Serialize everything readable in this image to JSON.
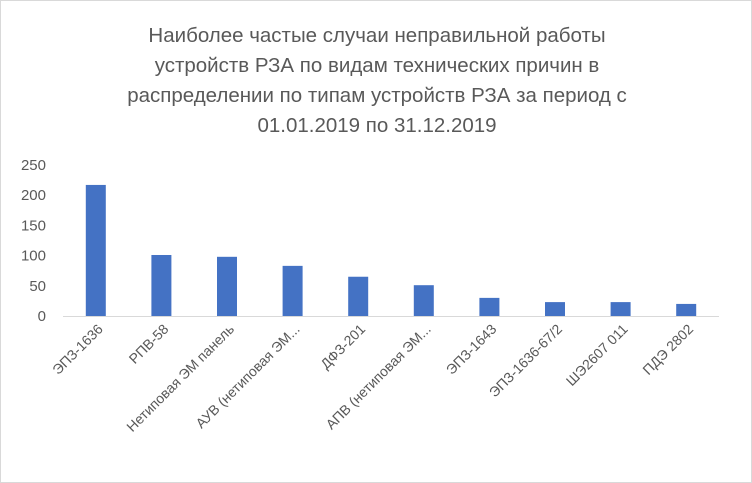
{
  "chart_data": {
    "type": "bar",
    "title_lines": [
      "Наиболее частые случаи неправильной работы",
      "устройств РЗА по видам технических причин в",
      "распределении по типам устройств РЗА за период с",
      "01.01.2019 по 31.12.2019"
    ],
    "categories": [
      "ЭПЗ-1636",
      "РПВ-58",
      "Нетиповая ЭМ панель",
      "АУВ (нетиповая ЭМ...",
      "ДФЗ-201",
      "АПВ (нетиповая ЭМ...",
      "ЭПЗ-1643",
      "ЭПЗ-1636-67/2",
      "ШЭ2607 011",
      "ПДЭ 2802"
    ],
    "values": [
      217,
      101,
      98,
      83,
      65,
      51,
      30,
      23,
      23,
      20
    ],
    "ylim": [
      0,
      250
    ],
    "yticks": [
      "0",
      "50",
      "100",
      "150",
      "200",
      "250"
    ],
    "bar_color": "#4472c4",
    "grid": false,
    "legend": "none"
  }
}
